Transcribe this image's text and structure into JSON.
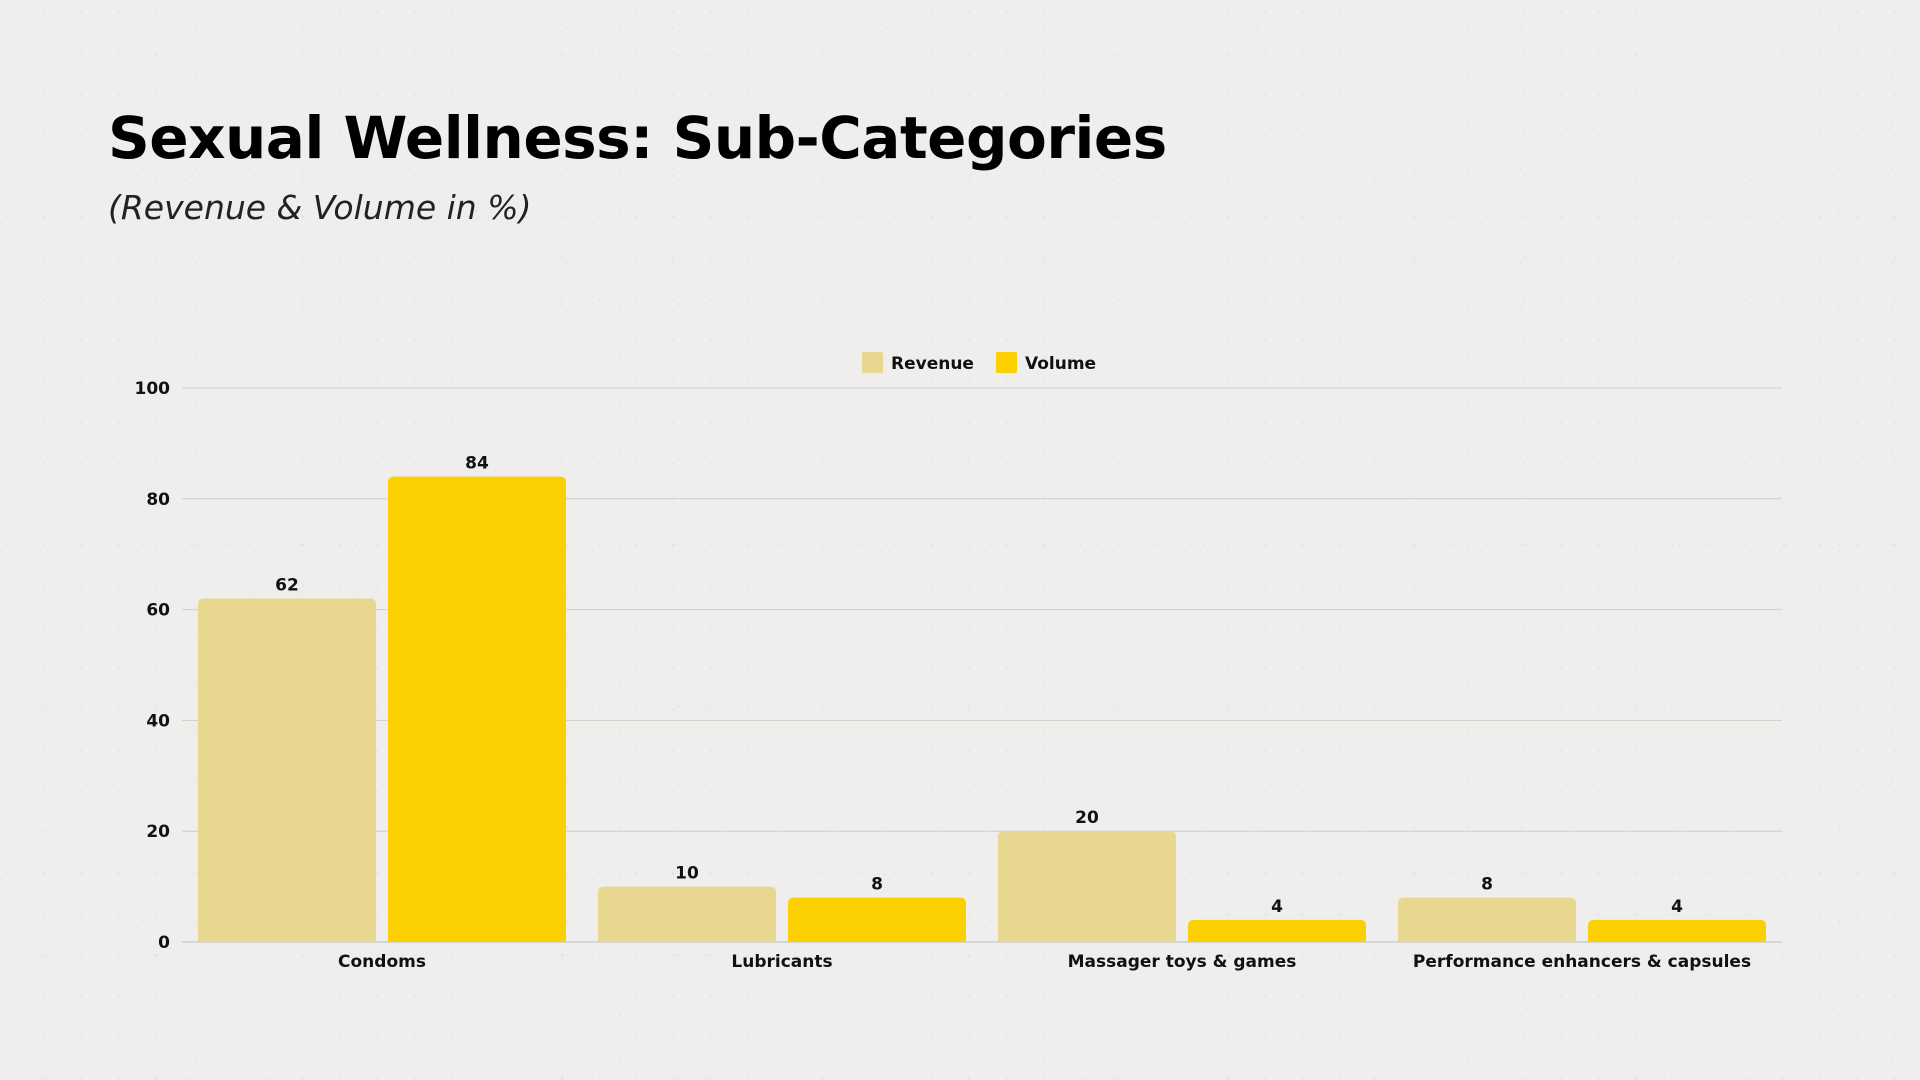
{
  "title": "Sexual Wellness: Sub-Categories",
  "subtitle": "(Revenue & Volume in %)",
  "chart_data": {
    "type": "bar",
    "categories": [
      "Condoms",
      "Lubricants",
      "Massager toys & games",
      "Performance enhancers & capsules"
    ],
    "series": [
      {
        "name": "Revenue",
        "values": [
          62,
          10,
          20,
          8
        ],
        "color": "#e8d78e"
      },
      {
        "name": "Volume",
        "values": [
          84,
          8,
          4,
          4
        ],
        "color": "#fccf00"
      }
    ],
    "ylim": [
      0,
      100
    ],
    "yticks": [
      0,
      20,
      40,
      60,
      80,
      100
    ],
    "xlabel": "",
    "ylabel": "",
    "grid": true,
    "legend": "top-center",
    "data_labels": true
  }
}
